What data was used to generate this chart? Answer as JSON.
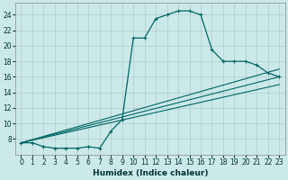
{
  "xlabel": "Humidex (Indice chaleur)",
  "bg_color": "#cce9e9",
  "grid_color": "#b0cccc",
  "line_color": "#006666",
  "xlim": [
    -0.5,
    23.5
  ],
  "ylim": [
    6,
    25.5
  ],
  "xticks": [
    0,
    1,
    2,
    3,
    4,
    5,
    6,
    7,
    8,
    9,
    10,
    11,
    12,
    13,
    14,
    15,
    16,
    17,
    18,
    19,
    20,
    21,
    22,
    23
  ],
  "yticks": [
    8,
    10,
    12,
    14,
    16,
    18,
    20,
    22,
    24
  ],
  "ytick_labels": [
    "8",
    "10",
    "12",
    "14",
    "16",
    "18",
    "20",
    "22",
    "24"
  ],
  "curve1_x": [
    0,
    1,
    2,
    3,
    4,
    5,
    6,
    7,
    8,
    9,
    10,
    11,
    12,
    13,
    14,
    15,
    16,
    17,
    18,
    19,
    20,
    21,
    22,
    23
  ],
  "curve1_y": [
    7.5,
    7.5,
    7.0,
    6.8,
    6.8,
    6.8,
    7.0,
    6.8,
    9.0,
    10.5,
    21.0,
    21.0,
    23.5,
    24.0,
    24.5,
    24.5,
    24.0,
    19.5,
    18.0,
    18.0,
    18.0,
    17.5,
    16.5,
    16.0
  ],
  "line1_x": [
    0,
    23
  ],
  "line1_y": [
    7.5,
    17.0
  ],
  "line2_x": [
    0,
    23
  ],
  "line2_y": [
    7.5,
    16.0
  ],
  "line3_x": [
    0,
    23
  ],
  "line3_y": [
    7.5,
    15.0
  ]
}
